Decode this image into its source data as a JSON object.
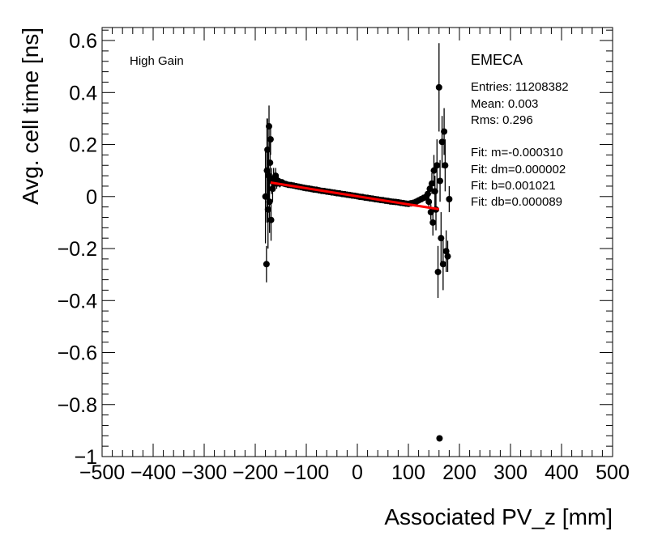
{
  "chart_data": {
    "type": "scatter",
    "xlabel": "Associated PV_z [mm]",
    "ylabel": "Avg. cell time [ns]",
    "xlim": [
      -500,
      500
    ],
    "ylim": [
      -1,
      0.65
    ],
    "x_ticks": [
      -500,
      -400,
      -300,
      -200,
      -100,
      0,
      100,
      200,
      300,
      400,
      500
    ],
    "x_tick_labels": [
      "−500",
      "−400",
      "−300",
      "−200",
      "−100",
      "0",
      "100",
      "200",
      "300",
      "400",
      "500"
    ],
    "y_ticks": [
      0.6,
      0.4,
      0.2,
      0,
      -0.2,
      -0.4,
      -0.6,
      -0.8,
      -1
    ],
    "y_tick_labels": [
      "0.6",
      "0.4",
      "0.2",
      "0",
      "−0.2",
      "−0.4",
      "−0.6",
      "−0.8",
      "−1"
    ],
    "grid": false,
    "annotation_left": "High Gain",
    "stats_box": {
      "title": "EMECA",
      "entries": "Entries: 11208382",
      "mean": "Mean: 0.003",
      "rms": "Rms: 0.296",
      "fit_m": "Fit: m=-0.000310",
      "fit_dm": "Fit: dm=0.000002",
      "fit_b": "Fit: b=0.001021",
      "fit_db": "Fit: db=0.000089"
    },
    "fit_line": {
      "slope": -0.00031,
      "intercept": 0.001021,
      "x_range": [
        -170,
        160
      ],
      "color": "#ff0000"
    },
    "points": [
      {
        "x": -180,
        "y": 0.0,
        "err": 0.18
      },
      {
        "x": -178,
        "y": -0.26,
        "err": 0.07
      },
      {
        "x": -177,
        "y": 0.1,
        "err": 0.2
      },
      {
        "x": -176,
        "y": 0.18,
        "err": 0.12
      },
      {
        "x": -175,
        "y": -0.05,
        "err": 0.15
      },
      {
        "x": -174,
        "y": 0.08,
        "err": 0.1
      },
      {
        "x": -173,
        "y": 0.27,
        "err": 0.08
      },
      {
        "x": -172,
        "y": -0.02,
        "err": 0.12
      },
      {
        "x": -171,
        "y": 0.13,
        "err": 0.08
      },
      {
        "x": -170,
        "y": 0.22,
        "err": 0.06
      },
      {
        "x": -169,
        "y": -0.09,
        "err": 0.08
      },
      {
        "x": -168,
        "y": 0.06,
        "err": 0.05
      },
      {
        "x": -166,
        "y": 0.03,
        "err": 0.05
      },
      {
        "x": -164,
        "y": 0.07,
        "err": 0.04
      },
      {
        "x": -162,
        "y": 0.05,
        "err": 0.03
      },
      {
        "x": -160,
        "y": 0.08,
        "err": 0.03
      },
      {
        "x": -158,
        "y": 0.05,
        "err": 0.02
      },
      {
        "x": -155,
        "y": 0.06,
        "err": 0.02
      },
      {
        "x": -152,
        "y": 0.05,
        "err": 0.015
      },
      {
        "x": -148,
        "y": 0.055,
        "err": 0.01
      },
      {
        "x": -144,
        "y": 0.05,
        "err": 0.01
      },
      {
        "x": -140,
        "y": 0.048,
        "err": 0.008
      },
      {
        "x": -135,
        "y": 0.045,
        "err": 0.006
      },
      {
        "x": -130,
        "y": 0.044,
        "err": 0.005
      },
      {
        "x": -125,
        "y": 0.042,
        "err": 0.004
      },
      {
        "x": -120,
        "y": 0.04,
        "err": 0.004
      },
      {
        "x": -115,
        "y": 0.038,
        "err": 0.003
      },
      {
        "x": -110,
        "y": 0.036,
        "err": 0.003
      },
      {
        "x": -105,
        "y": 0.034,
        "err": 0.003
      },
      {
        "x": -100,
        "y": 0.032,
        "err": 0.002
      },
      {
        "x": -95,
        "y": 0.031,
        "err": 0.002
      },
      {
        "x": -90,
        "y": 0.029,
        "err": 0.002
      },
      {
        "x": -85,
        "y": 0.027,
        "err": 0.002
      },
      {
        "x": -80,
        "y": 0.026,
        "err": 0.002
      },
      {
        "x": -75,
        "y": 0.024,
        "err": 0.002
      },
      {
        "x": -70,
        "y": 0.022,
        "err": 0.002
      },
      {
        "x": -65,
        "y": 0.021,
        "err": 0.002
      },
      {
        "x": -60,
        "y": 0.019,
        "err": 0.002
      },
      {
        "x": -55,
        "y": 0.018,
        "err": 0.002
      },
      {
        "x": -50,
        "y": 0.016,
        "err": 0.002
      },
      {
        "x": -45,
        "y": 0.015,
        "err": 0.002
      },
      {
        "x": -40,
        "y": 0.013,
        "err": 0.002
      },
      {
        "x": -35,
        "y": 0.012,
        "err": 0.002
      },
      {
        "x": -30,
        "y": 0.01,
        "err": 0.002
      },
      {
        "x": -25,
        "y": 0.009,
        "err": 0.002
      },
      {
        "x": -20,
        "y": 0.007,
        "err": 0.002
      },
      {
        "x": -15,
        "y": 0.006,
        "err": 0.002
      },
      {
        "x": -10,
        "y": 0.004,
        "err": 0.002
      },
      {
        "x": -5,
        "y": 0.003,
        "err": 0.002
      },
      {
        "x": 0,
        "y": 0.001,
        "err": 0.002
      },
      {
        "x": 5,
        "y": -0.001,
        "err": 0.002
      },
      {
        "x": 10,
        "y": -0.002,
        "err": 0.002
      },
      {
        "x": 15,
        "y": -0.004,
        "err": 0.002
      },
      {
        "x": 20,
        "y": -0.005,
        "err": 0.002
      },
      {
        "x": 25,
        "y": -0.007,
        "err": 0.002
      },
      {
        "x": 30,
        "y": -0.008,
        "err": 0.002
      },
      {
        "x": 35,
        "y": -0.01,
        "err": 0.002
      },
      {
        "x": 40,
        "y": -0.011,
        "err": 0.002
      },
      {
        "x": 45,
        "y": -0.013,
        "err": 0.002
      },
      {
        "x": 50,
        "y": -0.014,
        "err": 0.002
      },
      {
        "x": 55,
        "y": -0.016,
        "err": 0.002
      },
      {
        "x": 60,
        "y": -0.017,
        "err": 0.002
      },
      {
        "x": 65,
        "y": -0.019,
        "err": 0.002
      },
      {
        "x": 70,
        "y": -0.02,
        "err": 0.002
      },
      {
        "x": 75,
        "y": -0.021,
        "err": 0.002
      },
      {
        "x": 80,
        "y": -0.022,
        "err": 0.003
      },
      {
        "x": 85,
        "y": -0.024,
        "err": 0.003
      },
      {
        "x": 90,
        "y": -0.025,
        "err": 0.003
      },
      {
        "x": 95,
        "y": -0.027,
        "err": 0.003
      },
      {
        "x": 100,
        "y": -0.028,
        "err": 0.004
      },
      {
        "x": 105,
        "y": -0.026,
        "err": 0.004
      },
      {
        "x": 110,
        "y": -0.024,
        "err": 0.005
      },
      {
        "x": 115,
        "y": -0.02,
        "err": 0.006
      },
      {
        "x": 120,
        "y": -0.015,
        "err": 0.008
      },
      {
        "x": 125,
        "y": -0.01,
        "err": 0.01
      },
      {
        "x": 130,
        "y": -0.005,
        "err": 0.012
      },
      {
        "x": 135,
        "y": 0.0,
        "err": 0.015
      },
      {
        "x": 138,
        "y": 0.01,
        "err": 0.02
      },
      {
        "x": 140,
        "y": -0.02,
        "err": 0.02
      },
      {
        "x": 142,
        "y": 0.03,
        "err": 0.025
      },
      {
        "x": 144,
        "y": -0.06,
        "err": 0.03
      },
      {
        "x": 146,
        "y": 0.05,
        "err": 0.04
      },
      {
        "x": 148,
        "y": -0.1,
        "err": 0.05
      },
      {
        "x": 150,
        "y": 0.1,
        "err": 0.06
      },
      {
        "x": 152,
        "y": 0.02,
        "err": 0.06
      },
      {
        "x": 154,
        "y": -0.05,
        "err": 0.08
      },
      {
        "x": 156,
        "y": 0.12,
        "err": 0.1
      },
      {
        "x": 158,
        "y": -0.29,
        "err": 0.1
      },
      {
        "x": 160,
        "y": 0.42,
        "err": 0.17
      },
      {
        "x": 161,
        "y": -0.93,
        "err": 0.0
      },
      {
        "x": 162,
        "y": 0.06,
        "err": 0.08
      },
      {
        "x": 164,
        "y": -0.16,
        "err": 0.1
      },
      {
        "x": 166,
        "y": 0.21,
        "err": 0.1
      },
      {
        "x": 168,
        "y": -0.26,
        "err": 0.1
      },
      {
        "x": 170,
        "y": 0.25,
        "err": 0.09
      },
      {
        "x": 172,
        "y": 0.12,
        "err": 0.1
      },
      {
        "x": 174,
        "y": -0.21,
        "err": 0.08
      },
      {
        "x": 177,
        "y": -0.23,
        "err": 0.06
      },
      {
        "x": 180,
        "y": -0.01,
        "err": 0.05
      }
    ]
  }
}
